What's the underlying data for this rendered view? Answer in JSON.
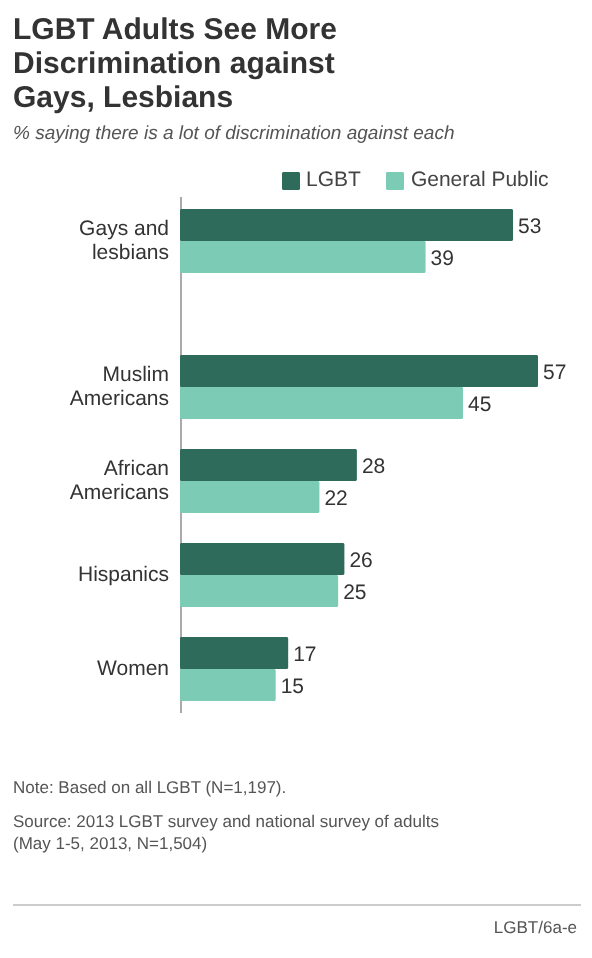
{
  "chart_data": {
    "type": "bar",
    "orientation": "horizontal",
    "title": "LGBT Adults See More Discrimination against Gays, Lesbians",
    "subtitle": "% saying there is a lot of discrimination against each",
    "categories": [
      "Gays and lesbians",
      "Muslim Americans",
      "African Americans",
      "Hispanics",
      "Women"
    ],
    "series": [
      {
        "name": "LGBT",
        "color": "#2e6b5a",
        "values": [
          53,
          57,
          28,
          26,
          17
        ]
      },
      {
        "name": "General Public",
        "color": "#7ccbb5",
        "values": [
          39,
          45,
          22,
          25,
          15
        ]
      }
    ],
    "data_labels": true,
    "legend": "top",
    "annotations": [
      "Note: Based on all LGBT (N=1,197).",
      "Source: 2013 LGBT survey and national survey of adults (May 1-5, 2013, N=1,504)",
      "LGBT/6a-e"
    ]
  }
}
